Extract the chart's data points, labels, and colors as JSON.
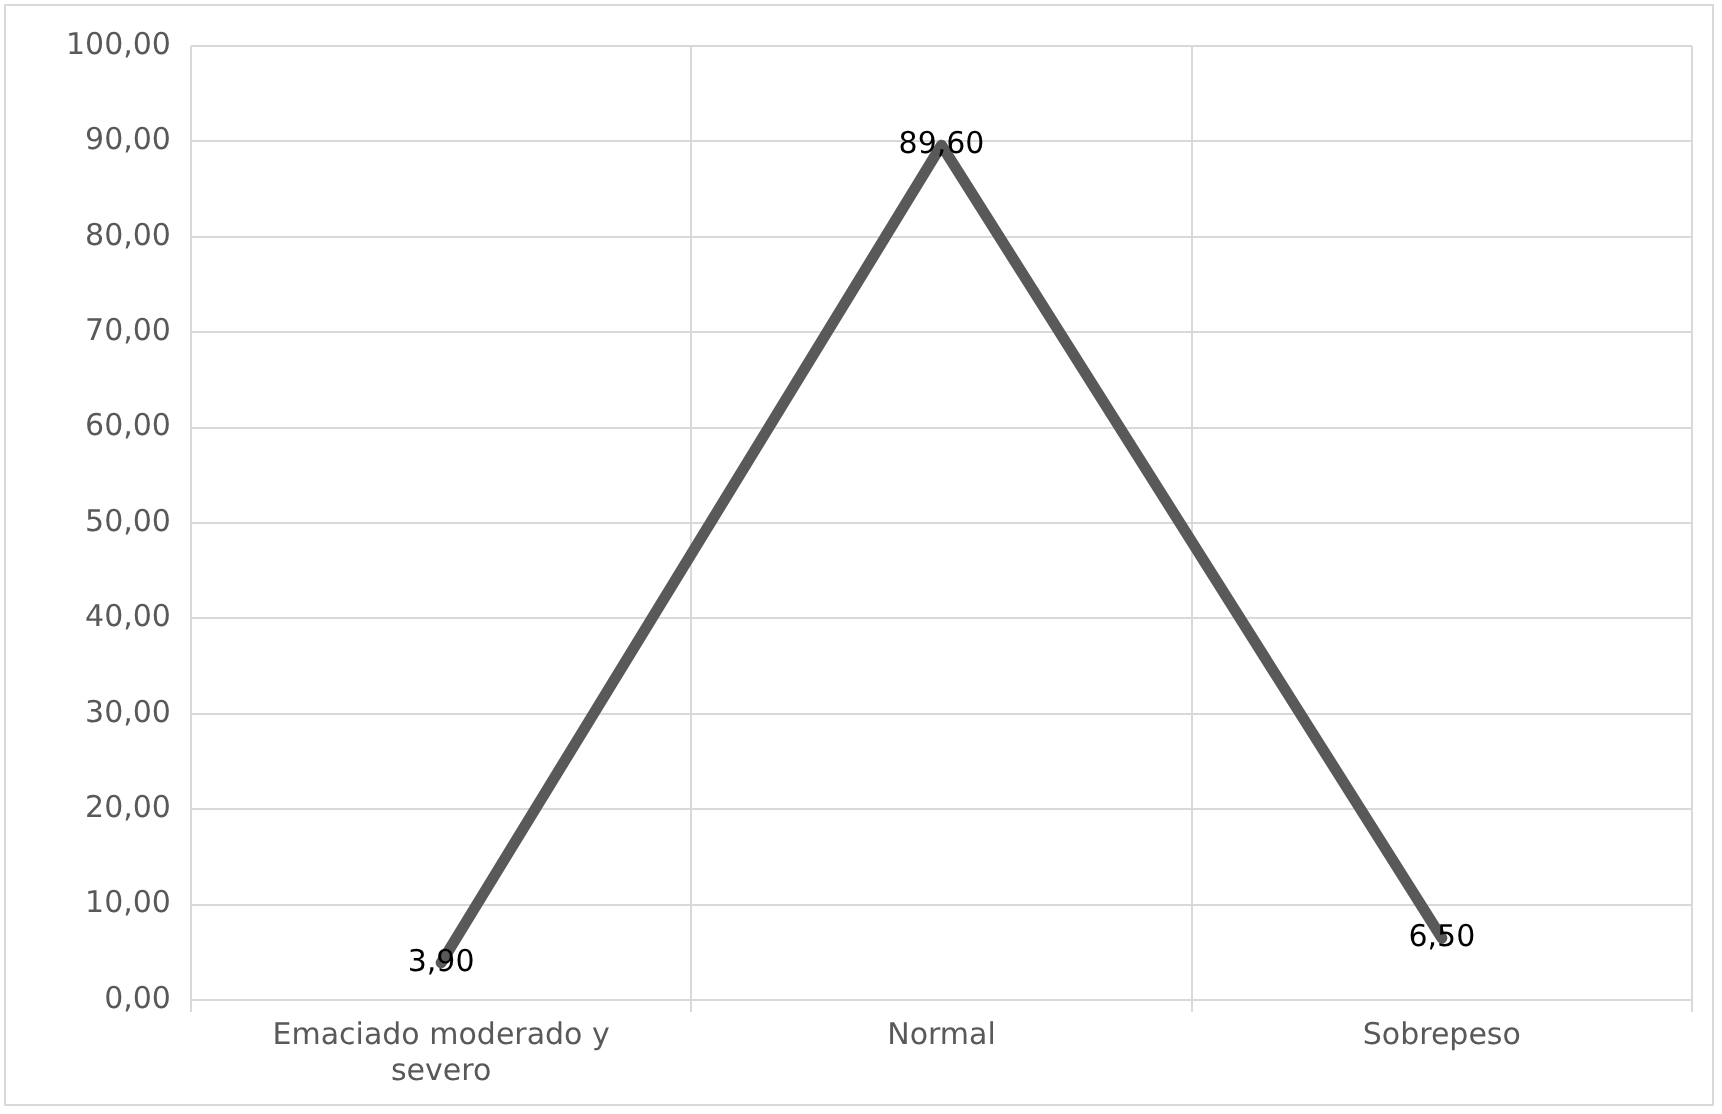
{
  "chart_data": {
    "type": "line",
    "categories": [
      "Emaciado moderado y severo",
      "Normal",
      "Sobrepeso"
    ],
    "series": [
      {
        "color": "#595959",
        "values": [
          3.9,
          89.6,
          6.5
        ],
        "value_labels": [
          "3,90",
          "89,60",
          "6,50"
        ]
      }
    ],
    "ylim": [
      0,
      100
    ],
    "yticks": [
      {
        "value": 0,
        "label": "0,00"
      },
      {
        "value": 10,
        "label": "10,00"
      },
      {
        "value": 20,
        "label": "20,00"
      },
      {
        "value": 30,
        "label": "30,00"
      },
      {
        "value": 40,
        "label": "40,00"
      },
      {
        "value": 50,
        "label": "50,00"
      },
      {
        "value": 60,
        "label": "60,00"
      },
      {
        "value": 70,
        "label": "70,00"
      },
      {
        "value": 80,
        "label": "80,00"
      },
      {
        "value": 90,
        "label": "90,00"
      },
      {
        "value": 100,
        "label": "100,00"
      }
    ],
    "grid": true,
    "legend": false,
    "marker": "none",
    "line_style": "solid"
  }
}
